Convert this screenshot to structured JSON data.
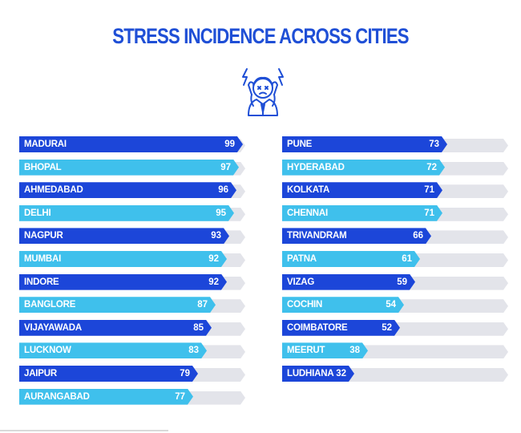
{
  "title": "STRESS INCIDENCE ACROSS CITIES",
  "icon": "stressed-person-icon",
  "colors": {
    "title": "#1f4fd6",
    "dark_bar": "#1c46d9",
    "light_bar": "#3fc0ec",
    "track": "#e3e4ea"
  },
  "chart_data": {
    "type": "bar",
    "orientation": "horizontal",
    "title": "STRESS INCIDENCE ACROSS CITIES",
    "xlim": [
      0,
      100
    ],
    "grid": false,
    "columns": [
      {
        "categories": [
          "MADURAI",
          "BHOPAL",
          "AHMEDABAD",
          "DELHI",
          "NAGPUR",
          "MUMBAI",
          "INDORE",
          "BANGLORE",
          "VIJAYAWADA",
          "LUCKNOW",
          "JAIPUR",
          "AURANGABAD"
        ],
        "values": [
          99,
          97,
          96,
          95,
          93,
          92,
          92,
          87,
          85,
          83,
          79,
          77
        ]
      },
      {
        "categories": [
          "PUNE",
          "HYDERABAD",
          "KOLKATA",
          "CHENNAI",
          "TRIVANDRAM",
          "PATNA",
          "VIZAG",
          "COCHIN",
          "COIMBATORE",
          "MEERUT",
          "LUDHIANA"
        ],
        "values": [
          73,
          72,
          71,
          71,
          66,
          61,
          59,
          54,
          52,
          38,
          32
        ]
      }
    ]
  }
}
